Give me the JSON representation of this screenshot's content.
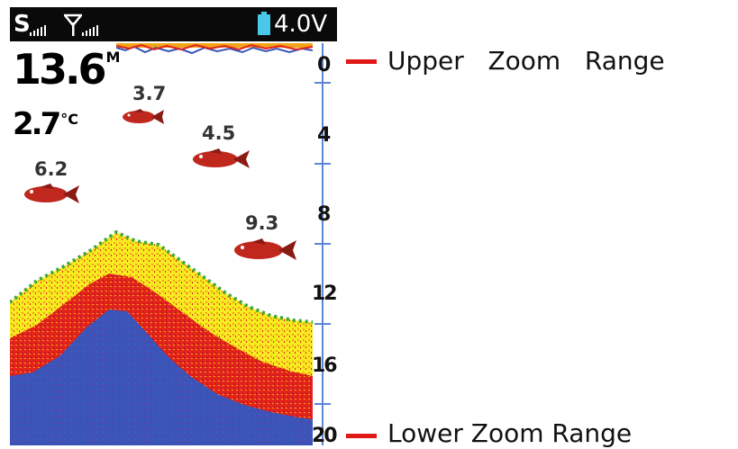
{
  "status_bar": {
    "sonar_indicator": "S",
    "voltage": "4.0V",
    "icons": [
      "sonar-signal-icon",
      "antenna-icon",
      "gps-signal-icon",
      "battery-icon"
    ],
    "battery_color": "#49c8e8"
  },
  "readings": {
    "depth": "13.6",
    "depth_unit": "M",
    "temperature": "2.7",
    "temperature_unit": "°C"
  },
  "fish": [
    {
      "label": "3.7"
    },
    {
      "label": "4.5"
    },
    {
      "label": "6.2"
    },
    {
      "label": "9.3"
    }
  ],
  "depth_scale": {
    "labels": [
      "0",
      "4",
      "8",
      "12",
      "16",
      "20"
    ]
  },
  "callouts": {
    "upper": "Upper   Zoom   Range",
    "lower": "Lower Zoom Range"
  },
  "colors": {
    "scale_blue": "#5a86d6",
    "callout_red": "#e01818",
    "sonar_yellow": "#f6ea20",
    "sonar_orange": "#f2a51a",
    "sonar_red": "#e3231c",
    "sonar_blue": "#3a54b8",
    "fish_red": "#c0281e"
  }
}
